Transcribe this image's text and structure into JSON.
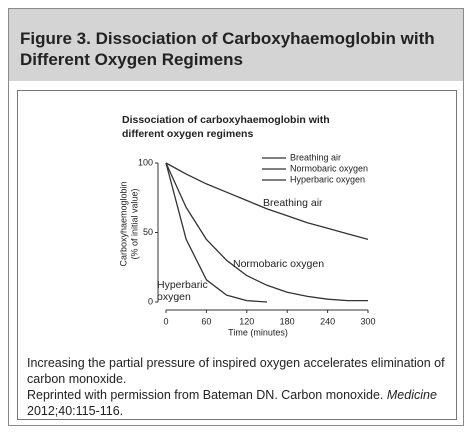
{
  "header": {
    "title": "Figure 3. Dissociation of Carboxyhaemoglobin with Different Oxygen Regimens"
  },
  "chart_data": {
    "type": "line",
    "title": "Dissociation of carboxyhaemoglobin with different oxygen regimens",
    "xlabel": "Time (minutes)",
    "ylabel": "Carboxyhaemoglobin",
    "ylabel_unit": "(% of initial value)",
    "x": [
      0,
      30,
      60,
      90,
      120,
      150,
      180,
      210,
      240,
      270,
      300
    ],
    "series": [
      {
        "name": "Breathing air",
        "color": "#333333",
        "values": [
          100,
          92,
          85,
          79,
          73,
          67,
          62,
          57,
          53,
          49,
          45
        ]
      },
      {
        "name": "Normobaric oxygen",
        "color": "#333333",
        "values": [
          100,
          68,
          45,
          30,
          19,
          12,
          7,
          4,
          2,
          1,
          1
        ]
      },
      {
        "name": "Hyperbaric oxygen",
        "color": "#333333",
        "values": [
          100,
          45,
          16,
          5,
          1,
          0,
          null,
          null,
          null,
          null,
          null
        ]
      }
    ],
    "xlim": [
      0,
      300
    ],
    "xticks": [
      0,
      60,
      120,
      180,
      240,
      300
    ],
    "ylim": [
      0,
      100
    ],
    "yticks": [
      0,
      50,
      100
    ],
    "grid": false,
    "legend": "top-right"
  },
  "caption": {
    "text": "Increasing the partial pressure of inspired oxygen accelerates elimination of carbon monoxide.",
    "source_start": "Reprinted with permission from Bateman DN. Carbon monoxide. ",
    "source_journal": "Medicine",
    "source_end": " 2012;40:115-116."
  }
}
